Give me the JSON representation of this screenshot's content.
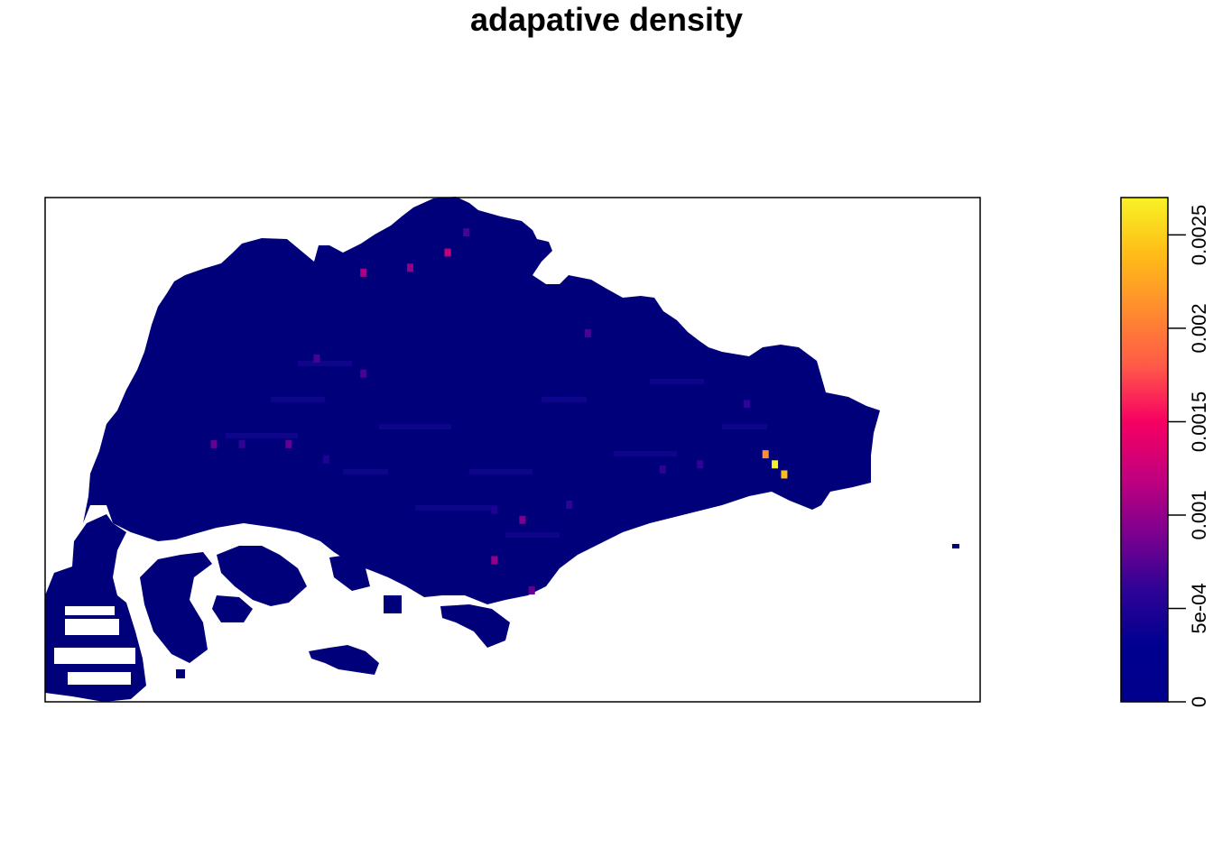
{
  "page": {
    "title": "adapative density"
  },
  "chart_data": {
    "type": "heatmap",
    "title": "adapative density",
    "xlabel": "",
    "ylabel": "",
    "axes_shown": false,
    "grid": false,
    "frame": true,
    "colorbar": {
      "position": "right",
      "range": [
        0,
        0.0027
      ],
      "ticks": [
        0,
        0.0005,
        0.001,
        0.0015,
        0.002,
        0.0025
      ],
      "tick_labels": [
        "0",
        "5e-04",
        "0.001",
        "0.0015",
        "0.002",
        "0.0025"
      ],
      "palette": [
        "#00008B",
        "#000090",
        "#2E0396",
        "#7C0090",
        "#C2007E",
        "#F70062",
        "#FF5A48",
        "#FF8C2E",
        "#FFBD17",
        "#F7F225"
      ]
    },
    "map": {
      "description_colors": {
        "land_base": "#00007A",
        "outside": "#FFFFFF"
      },
      "hotspots": [
        {
          "x": 0.78,
          "y": 0.53,
          "value": 0.0027
        },
        {
          "x": 0.79,
          "y": 0.55,
          "value": 0.0024
        },
        {
          "x": 0.77,
          "y": 0.51,
          "value": 0.0021
        },
        {
          "x": 0.43,
          "y": 0.11,
          "value": 0.0012
        },
        {
          "x": 0.34,
          "y": 0.15,
          "value": 0.0011
        },
        {
          "x": 0.39,
          "y": 0.14,
          "value": 0.001
        },
        {
          "x": 0.48,
          "y": 0.72,
          "value": 0.001
        },
        {
          "x": 0.51,
          "y": 0.64,
          "value": 0.0009
        },
        {
          "x": 0.26,
          "y": 0.49,
          "value": 0.0008
        },
        {
          "x": 0.18,
          "y": 0.49,
          "value": 0.0008
        },
        {
          "x": 0.52,
          "y": 0.78,
          "value": 0.0008
        },
        {
          "x": 0.34,
          "y": 0.35,
          "value": 0.0007
        },
        {
          "x": 0.29,
          "y": 0.32,
          "value": 0.0007
        },
        {
          "x": 0.58,
          "y": 0.27,
          "value": 0.0007
        },
        {
          "x": 0.45,
          "y": 0.07,
          "value": 0.0007
        },
        {
          "x": 0.7,
          "y": 0.53,
          "value": 0.0006
        },
        {
          "x": 0.75,
          "y": 0.41,
          "value": 0.0006
        },
        {
          "x": 0.66,
          "y": 0.54,
          "value": 0.0006
        },
        {
          "x": 0.21,
          "y": 0.49,
          "value": 0.0006
        },
        {
          "x": 0.56,
          "y": 0.61,
          "value": 0.0006
        },
        {
          "x": 0.48,
          "y": 0.62,
          "value": 0.0005
        },
        {
          "x": 0.3,
          "y": 0.52,
          "value": 0.0005
        }
      ]
    }
  }
}
